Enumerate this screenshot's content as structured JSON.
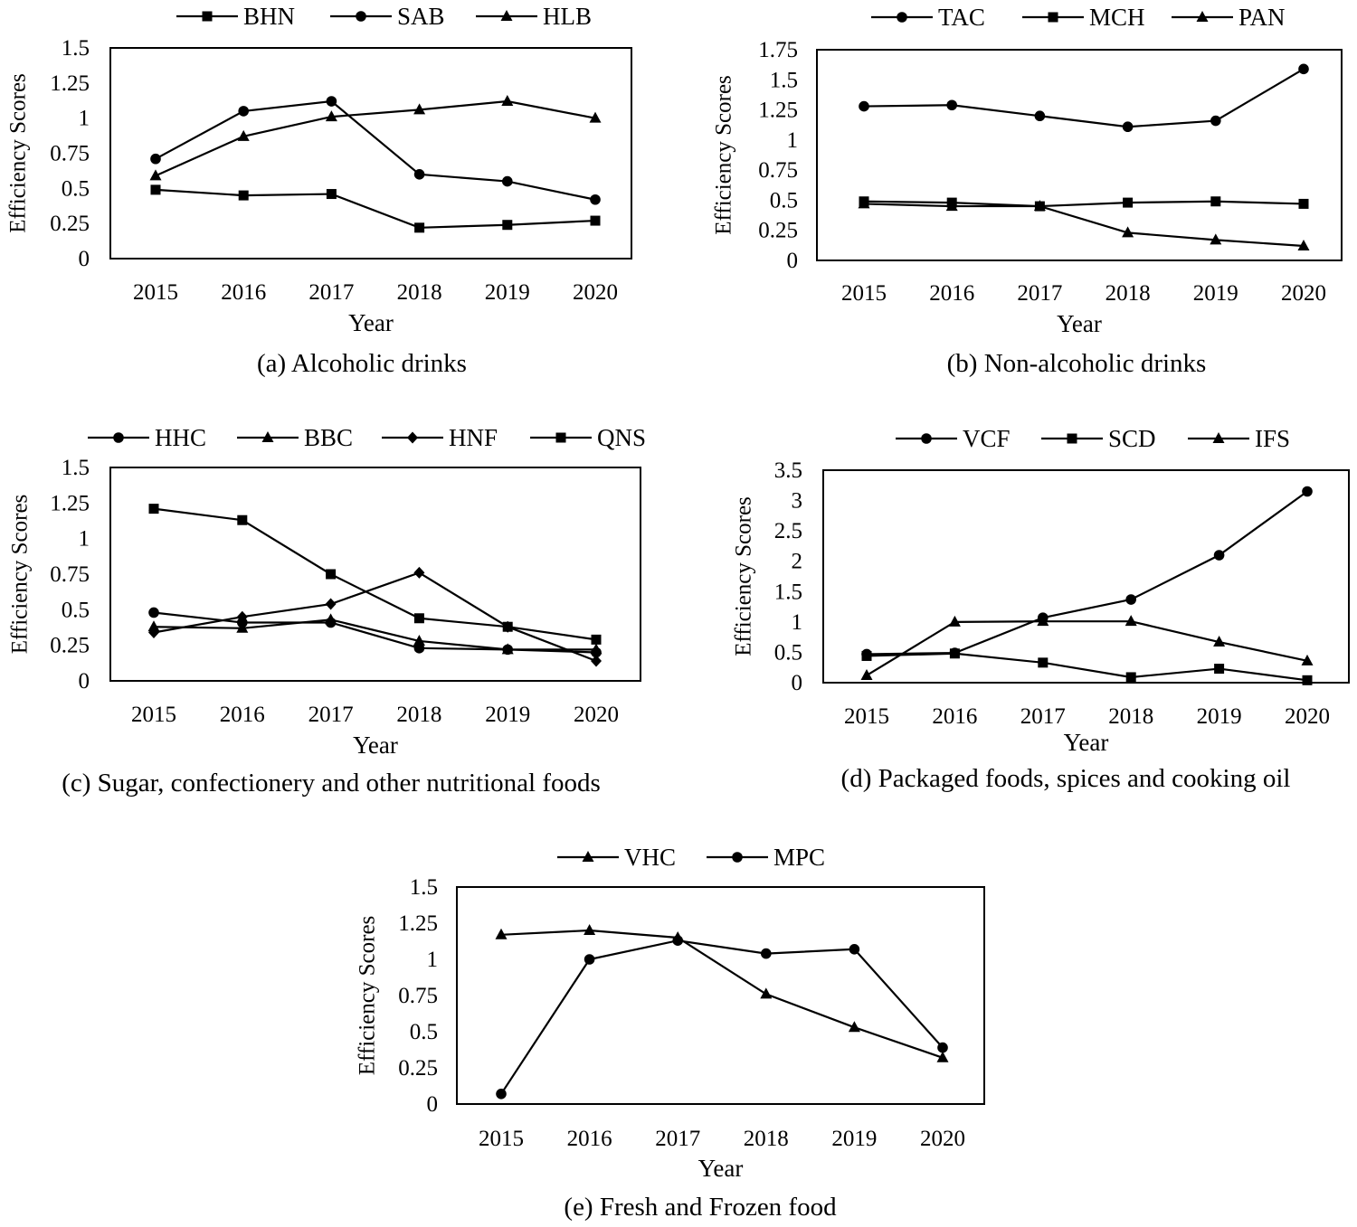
{
  "chart_data": [
    {
      "type": "line",
      "title": "(a) Alcoholic drinks",
      "xlabel": "Year",
      "ylabel": "Efficiency Scores",
      "ylim": [
        0,
        1.5
      ],
      "yticks": [
        "0",
        "0.25",
        "0.5",
        "0.75",
        "1",
        "1.25",
        "1.5"
      ],
      "categories": [
        "2015",
        "2016",
        "2017",
        "2018",
        "2019",
        "2020"
      ],
      "legend_position": "top",
      "series": [
        {
          "name": "BHN",
          "marker": "square",
          "values": [
            0.49,
            0.45,
            0.46,
            0.22,
            0.24,
            0.27
          ]
        },
        {
          "name": "SAB",
          "marker": "circle",
          "values": [
            0.71,
            1.05,
            1.12,
            0.6,
            0.55,
            0.42
          ]
        },
        {
          "name": "HLB",
          "marker": "triangle",
          "values": [
            0.59,
            0.87,
            1.01,
            1.06,
            1.12,
            1.0
          ]
        }
      ]
    },
    {
      "type": "line",
      "title": "(b) Non-alcoholic drinks",
      "xlabel": "Year",
      "ylabel": "Efficiency Scores",
      "ylim": [
        0,
        1.75
      ],
      "yticks": [
        "0",
        "0.25",
        "0.5",
        "0.75",
        "1",
        "1.25",
        "1.5",
        "1.75"
      ],
      "categories": [
        "2015",
        "2016",
        "2017",
        "2018",
        "2019",
        "2020"
      ],
      "legend_position": "top",
      "series": [
        {
          "name": "TAC",
          "marker": "circle",
          "values": [
            1.28,
            1.29,
            1.2,
            1.11,
            1.16,
            1.59
          ]
        },
        {
          "name": "MCH",
          "marker": "square",
          "values": [
            0.49,
            0.48,
            0.45,
            0.48,
            0.49,
            0.47
          ]
        },
        {
          "name": "PAN",
          "marker": "triangle",
          "values": [
            0.47,
            0.45,
            0.45,
            0.23,
            0.17,
            0.12
          ]
        }
      ]
    },
    {
      "type": "line",
      "title": "(c) Sugar, confectionery and other nutritional foods",
      "xlabel": "Year",
      "ylabel": "Efficiency Scores",
      "ylim": [
        0,
        1.5
      ],
      "yticks": [
        "0",
        "0.25",
        "0.5",
        "0.75",
        "1",
        "1.25",
        "1.5"
      ],
      "categories": [
        "2015",
        "2016",
        "2017",
        "2018",
        "2019",
        "2020"
      ],
      "legend_position": "top",
      "series": [
        {
          "name": "HHC",
          "marker": "circle",
          "values": [
            0.48,
            0.41,
            0.41,
            0.23,
            0.22,
            0.2
          ]
        },
        {
          "name": "BBC",
          "marker": "triangle",
          "values": [
            0.38,
            0.37,
            0.43,
            0.28,
            0.22,
            0.22
          ]
        },
        {
          "name": "HNF",
          "marker": "diamond",
          "values": [
            0.34,
            0.45,
            0.54,
            0.76,
            0.38,
            0.14
          ]
        },
        {
          "name": "QNS",
          "marker": "square",
          "values": [
            1.21,
            1.13,
            0.75,
            0.44,
            0.38,
            0.29
          ]
        }
      ]
    },
    {
      "type": "line",
      "title": "(d) Packaged foods, spices and cooking oil",
      "xlabel": "Year",
      "ylabel": "Efficiency Scores",
      "ylim": [
        0,
        3.5
      ],
      "yticks": [
        "0",
        "0.5",
        "1",
        "1.5",
        "2",
        "2.5",
        "3",
        "3.5"
      ],
      "categories": [
        "2015",
        "2016",
        "2017",
        "2018",
        "2019",
        "2020"
      ],
      "legend_position": "top",
      "series": [
        {
          "name": "VCF",
          "marker": "circle",
          "values": [
            0.47,
            0.49,
            1.07,
            1.37,
            2.1,
            3.15
          ]
        },
        {
          "name": "SCD",
          "marker": "square",
          "values": [
            0.44,
            0.48,
            0.33,
            0.09,
            0.23,
            0.04
          ]
        },
        {
          "name": "IFS",
          "marker": "triangle",
          "values": [
            0.12,
            1.0,
            1.01,
            1.01,
            0.67,
            0.36
          ]
        }
      ]
    },
    {
      "type": "line",
      "title": "(e) Fresh and Frozen food",
      "xlabel": "Year",
      "ylabel": "Efficiency Scores",
      "ylim": [
        0,
        1.5
      ],
      "yticks": [
        "0",
        "0.25",
        "0.5",
        "0.75",
        "1",
        "1.25",
        "1.5"
      ],
      "categories": [
        "2015",
        "2016",
        "2017",
        "2018",
        "2019",
        "2020"
      ],
      "legend_position": "top",
      "series": [
        {
          "name": "VHC",
          "marker": "triangle",
          "values": [
            1.17,
            1.2,
            1.15,
            0.76,
            0.53,
            0.32
          ]
        },
        {
          "name": "MPC",
          "marker": "circle",
          "values": [
            0.07,
            1.0,
            1.13,
            1.04,
            1.07,
            0.39
          ]
        }
      ]
    }
  ]
}
